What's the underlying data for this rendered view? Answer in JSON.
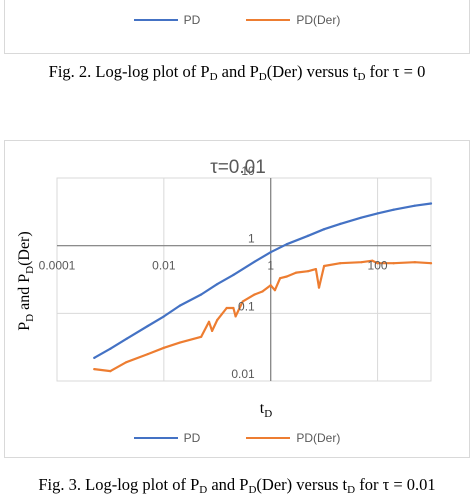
{
  "figure2": {
    "legend": [
      {
        "label": "PD",
        "color": "#4472c4"
      },
      {
        "label": "PD(Der)",
        "color": "#ed7d31"
      }
    ],
    "caption": {
      "text1": "Fig. 2.  Log-log plot of P",
      "sub1": "D",
      "text2": " and P",
      "sub2": "D",
      "text3": "(Der) versus t",
      "sub3": "D",
      "text4": " for τ = 0"
    }
  },
  "figure3": {
    "caption": {
      "text1": "Fig. 3.  Log-log plot of P",
      "sub1": "D",
      "text2": " and P",
      "sub2": "D",
      "text3": "(Der) versus t",
      "sub3": "D",
      "text4": " for τ = 0.01"
    }
  },
  "chart_data": {
    "type": "line",
    "title": "τ=0.01",
    "xlabel": {
      "main": "t",
      "sub": "D"
    },
    "ylabel": {
      "p1": "P",
      "s1": "D",
      "mid": " and P",
      "s2": "D",
      "end": "(Der)"
    },
    "x_scale": "log",
    "y_scale": "log",
    "xlim": [
      0.0001,
      1000
    ],
    "ylim": [
      0.01,
      10
    ],
    "x_ticks": [
      {
        "value": 0.0001,
        "label": "0.0001"
      },
      {
        "value": 0.01,
        "label": "0.01"
      },
      {
        "value": 1,
        "label": "1"
      },
      {
        "value": 100,
        "label": "100"
      }
    ],
    "y_ticks": [
      {
        "value": 0.01,
        "label": "0.01"
      },
      {
        "value": 0.1,
        "label": "0.1"
      },
      {
        "value": 1,
        "label": "1"
      },
      {
        "value": 10,
        "label": "10"
      }
    ],
    "grid": true,
    "legend_position": "bottom",
    "series": [
      {
        "name": "PD",
        "color": "#4472c4",
        "x": [
          0.0005,
          0.001,
          0.002,
          0.005,
          0.01,
          0.02,
          0.05,
          0.1,
          0.2,
          0.5,
          1,
          2,
          5,
          10,
          20,
          50,
          100,
          200,
          500,
          1000
        ],
        "y": [
          0.022,
          0.03,
          0.042,
          0.065,
          0.09,
          0.13,
          0.19,
          0.27,
          0.37,
          0.58,
          0.8,
          1.05,
          1.4,
          1.75,
          2.1,
          2.6,
          3.0,
          3.4,
          3.9,
          4.2
        ]
      },
      {
        "name": "PD(Der)",
        "color": "#ed7d31",
        "x": [
          0.0005,
          0.001,
          0.002,
          0.005,
          0.01,
          0.02,
          0.05,
          0.07,
          0.08,
          0.1,
          0.15,
          0.2,
          0.22,
          0.3,
          0.5,
          0.7,
          1,
          1.2,
          1.5,
          2,
          3,
          5,
          7,
          8,
          10,
          20,
          50,
          80,
          100,
          200,
          500,
          1000
        ],
        "y": [
          0.015,
          0.014,
          0.019,
          0.025,
          0.031,
          0.037,
          0.045,
          0.075,
          0.055,
          0.08,
          0.12,
          0.12,
          0.09,
          0.15,
          0.19,
          0.21,
          0.26,
          0.22,
          0.33,
          0.35,
          0.4,
          0.42,
          0.45,
          0.24,
          0.5,
          0.55,
          0.57,
          0.6,
          0.55,
          0.55,
          0.57,
          0.55
        ]
      }
    ]
  }
}
